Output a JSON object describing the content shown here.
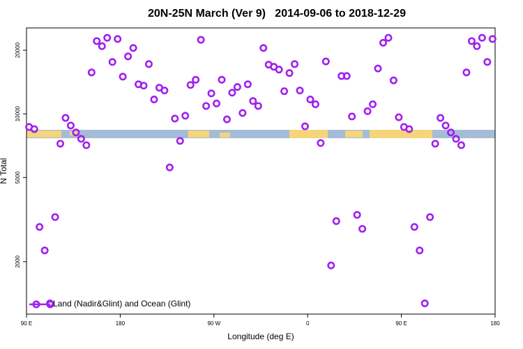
{
  "chart_data": {
    "type": "scatter",
    "title": "20N-25N March (Ver 9)   2014-09-06 to 2018-12-29",
    "x_label": "Longitude (deg E)",
    "y_label": "N Total",
    "log_y": true,
    "legend": "bottom-left",
    "xlim": [
      90,
      540
    ],
    "xticks": [
      {
        "value": 90,
        "label": "90 E"
      },
      180,
      {
        "value": 270,
        "label": "90 W"
      },
      {
        "value": 360,
        "label": "0"
      },
      {
        "value": 450,
        "label": "90 E"
      },
      {
        "value": 540,
        "label": "180"
      }
    ],
    "ylim": [
      1130,
      25500
    ],
    "yticks": [
      2000,
      5000,
      10000,
      20000
    ],
    "series": [
      {
        "name": "Land (Nadir&Glint) and Ocean (Glint)",
        "color": "#a020f0",
        "x": [
          92.5,
          97.5,
          102.5,
          107.5,
          112.5,
          117.5,
          122.5,
          127.5,
          132.5,
          137.5,
          142.5,
          147.5,
          152.5,
          157.5,
          162.5,
          167.5,
          172.5,
          177.5,
          182.5,
          187.5,
          192.5,
          197.5,
          202.5,
          207.5,
          212.5,
          217.5,
          222.5,
          227.5,
          232.5,
          237.5,
          242.5,
          247.5,
          252.5,
          257.5,
          262.5,
          267.5,
          272.5,
          277.5,
          282.5,
          287.5,
          292.5,
          297.5,
          302.5,
          307.5,
          312.5,
          317.5,
          322.5,
          327.5,
          332.5,
          337.5,
          342.5,
          347.5,
          352.5,
          357.5,
          362.5,
          367.5,
          372.5,
          377.5,
          382.5,
          387.5,
          392.5,
          397.5,
          402.5,
          407.5,
          412.5,
          417.5,
          422.5,
          427.5,
          432.5,
          437.5,
          442.5,
          447.5,
          452.5,
          457.5,
          462.5,
          467.5,
          472.5,
          477.5,
          482.5,
          487.5,
          492.5,
          497.5,
          502.5,
          507.5,
          512.5,
          517.5,
          522.5,
          527.5,
          532.5,
          537.5
        ],
        "values": [
          8670,
          8470,
          2920,
          2260,
          1270,
          3250,
          7230,
          9570,
          8810,
          8170,
          7620,
          7110,
          15700,
          22100,
          20900,
          22900,
          17600,
          22600,
          15000,
          18700,
          20500,
          13800,
          13600,
          17200,
          11700,
          13300,
          12900,
          5580,
          9500,
          7450,
          9800,
          13700,
          14500,
          22400,
          10900,
          12500,
          11200,
          14500,
          9420,
          12600,
          13400,
          10100,
          13800,
          11500,
          10900,
          20500,
          17100,
          16700,
          16200,
          12800,
          15600,
          17200,
          12900,
          8730,
          11700,
          11100,
          7280,
          17700,
          1920,
          3110,
          15100,
          15100,
          9720,
          3330,
          2860,
          10300,
          11100,
          16400,
          21700,
          22900,
          14400,
          9640,
          8670,
          8470,
          2920,
          2260,
          1270,
          3250,
          7230,
          9570,
          8810,
          8170,
          7620,
          7110,
          15700,
          22100,
          20900,
          22900,
          17600,
          22600
        ]
      }
    ]
  }
}
